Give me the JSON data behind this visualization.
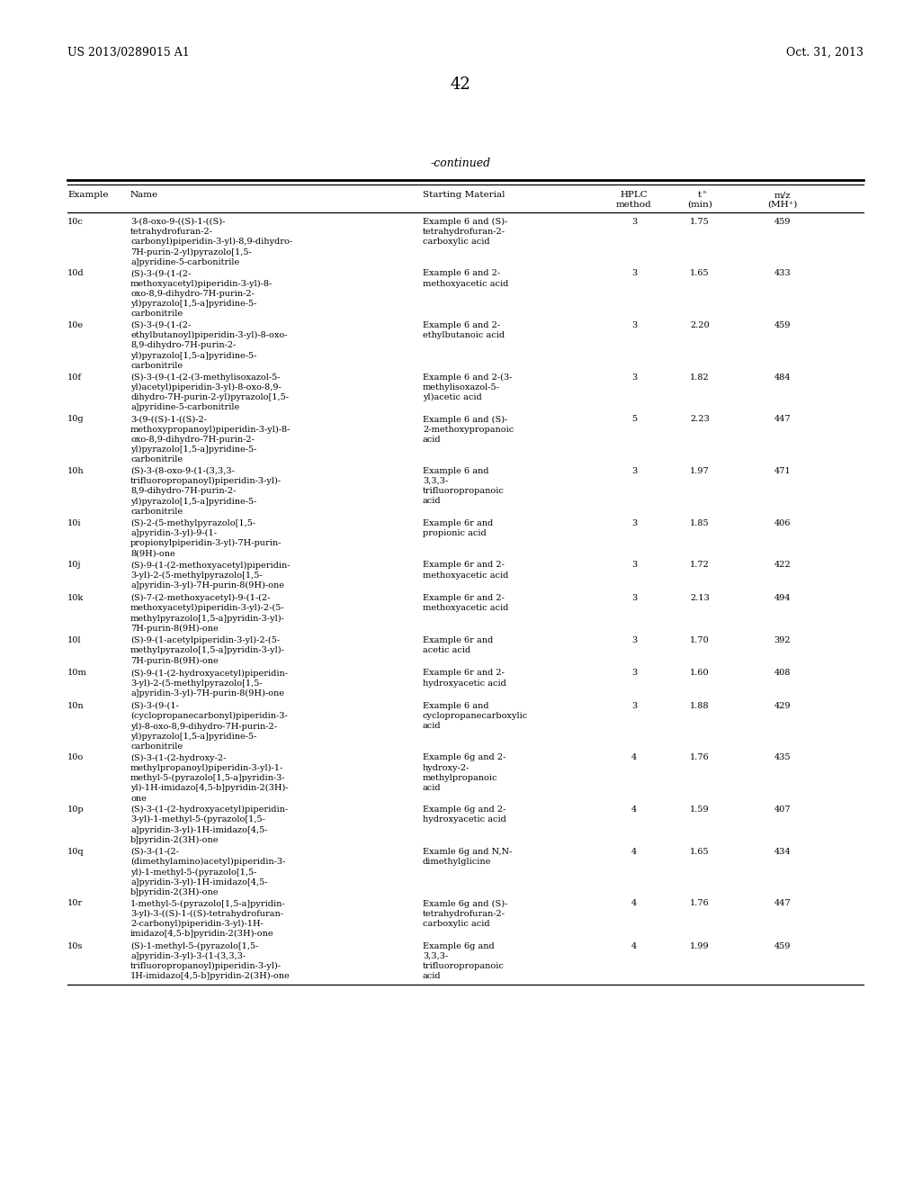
{
  "page_header_left": "US 2013/0289015 A1",
  "page_header_right": "Oct. 31, 2013",
  "page_number": "42",
  "table_title": "-continued",
  "bg_color": "#ffffff",
  "text_color": "#000000",
  "font_size": 7.0,
  "header_font_size": 7.5,
  "rows": [
    {
      "example": "10c",
      "name": "3-(8-oxo-9-((S)-1-((S)-\ntetrahydrofuran-2-\ncarbonyl)piperidin-3-yl)-8,9-dihydro-\n7H-purin-2-yl)pyrazolo[1,5-\na]pyridine-5-carbonitrile",
      "starting_material": "Example 6 and (S)-\ntetrahydrofuran-2-\ncarboxylic acid",
      "hplc": "3",
      "tr": "1.75",
      "mz": "459",
      "nlines_name": 5,
      "nlines_sm": 3
    },
    {
      "example": "10d",
      "name": "(S)-3-(9-(1-(2-\nmethoxyacetyl)piperidin-3-yl)-8-\noxo-8,9-dihydro-7H-purin-2-\nyl)pyrazolo[1,5-a]pyridine-5-\ncarbonitrile",
      "starting_material": "Example 6 and 2-\nmethoxyacetic acid",
      "hplc": "3",
      "tr": "1.65",
      "mz": "433",
      "nlines_name": 5,
      "nlines_sm": 2
    },
    {
      "example": "10e",
      "name": "(S)-3-(9-(1-(2-\nethylbutanoyl)piperidin-3-yl)-8-oxo-\n8,9-dihydro-7H-purin-2-\nyl)pyrazolo[1,5-a]pyridine-5-\ncarbonitrile",
      "starting_material": "Example 6 and 2-\nethylbutanoic acid",
      "hplc": "3",
      "tr": "2.20",
      "mz": "459",
      "nlines_name": 5,
      "nlines_sm": 2
    },
    {
      "example": "10f",
      "name": "(S)-3-(9-(1-(2-(3-methylisoxazol-5-\nyl)acetyl)piperidin-3-yl)-8-oxo-8,9-\ndihydro-7H-purin-2-yl)pyrazolo[1,5-\na]pyridine-5-carbonitrile",
      "starting_material": "Example 6 and 2-(3-\nmethylisoxazol-5-\nyl)acetic acid",
      "hplc": "3",
      "tr": "1.82",
      "mz": "484",
      "nlines_name": 4,
      "nlines_sm": 3
    },
    {
      "example": "10g",
      "name": "3-(9-((S)-1-((S)-2-\nmethoxypropanoyl)piperidin-3-yl)-8-\noxo-8,9-dihydro-7H-purin-2-\nyl)pyrazolo[1,5-a]pyridine-5-\ncarbonitrile",
      "starting_material": "Example 6 and (S)-\n2-methoxypropanoic\nacid",
      "hplc": "5",
      "tr": "2.23",
      "mz": "447",
      "nlines_name": 5,
      "nlines_sm": 3
    },
    {
      "example": "10h",
      "name": "(S)-3-(8-oxo-9-(1-(3,3,3-\ntrifluoropropanoyl)piperidin-3-yl)-\n8,9-dihydro-7H-purin-2-\nyl)pyrazolo[1,5-a]pyridine-5-\ncarbonitrile",
      "starting_material": "Example 6 and\n3,3,3-\ntrifluoropropanoic\nacid",
      "hplc": "3",
      "tr": "1.97",
      "mz": "471",
      "nlines_name": 5,
      "nlines_sm": 4
    },
    {
      "example": "10i",
      "name": "(S)-2-(5-methylpyrazolo[1,5-\na]pyridin-3-yl)-9-(1-\npropionylpiperidin-3-yl)-7H-purin-\n8(9H)-one",
      "starting_material": "Example 6r and\npropionic acid",
      "hplc": "3",
      "tr": "1.85",
      "mz": "406",
      "nlines_name": 4,
      "nlines_sm": 2
    },
    {
      "example": "10j",
      "name": "(S)-9-(1-(2-methoxyacetyl)piperidin-\n3-yl)-2-(5-methylpyrazolo[1,5-\na]pyridin-3-yl)-7H-purin-8(9H)-one",
      "starting_material": "Example 6r and 2-\nmethoxyacetic acid",
      "hplc": "3",
      "tr": "1.72",
      "mz": "422",
      "nlines_name": 3,
      "nlines_sm": 2
    },
    {
      "example": "10k",
      "name": "(S)-7-(2-methoxyacetyl)-9-(1-(2-\nmethoxyacetyl)piperidin-3-yl)-2-(5-\nmethylpyrazolo[1,5-a]pyridin-3-yl)-\n7H-purin-8(9H)-one",
      "starting_material": "Example 6r and 2-\nmethoxyacetic acid",
      "hplc": "3",
      "tr": "2.13",
      "mz": "494",
      "nlines_name": 4,
      "nlines_sm": 2
    },
    {
      "example": "10l",
      "name": "(S)-9-(1-acetylpiperidin-3-yl)-2-(5-\nmethylpyrazolo[1,5-a]pyridin-3-yl)-\n7H-purin-8(9H)-one",
      "starting_material": "Example 6r and\nacetic acid",
      "hplc": "3",
      "tr": "1.70",
      "mz": "392",
      "nlines_name": 3,
      "nlines_sm": 2
    },
    {
      "example": "10m",
      "name": "(S)-9-(1-(2-hydroxyacetyl)piperidin-\n3-yl)-2-(5-methylpyrazolo[1,5-\na]pyridin-3-yl)-7H-purin-8(9H)-one",
      "starting_material": "Example 6r and 2-\nhydroxyacetic acid",
      "hplc": "3",
      "tr": "1.60",
      "mz": "408",
      "nlines_name": 3,
      "nlines_sm": 2
    },
    {
      "example": "10n",
      "name": "(S)-3-(9-(1-\n(cyclopropanecarbonyl)piperidin-3-\nyl)-8-oxo-8,9-dihydro-7H-purin-2-\nyl)pyrazolo[1,5-a]pyridine-5-\ncarbonitrile",
      "starting_material": "Example 6 and\ncyclopropanecarboxylic\nacid",
      "hplc": "3",
      "tr": "1.88",
      "mz": "429",
      "nlines_name": 5,
      "nlines_sm": 3
    },
    {
      "example": "10o",
      "name": "(S)-3-(1-(2-hydroxy-2-\nmethylpropanoyl)piperidin-3-yl)-1-\nmethyl-5-(pyrazolo[1,5-a]pyridin-3-\nyl)-1H-imidazo[4,5-b]pyridin-2(3H)-\none",
      "starting_material": "Example 6g and 2-\nhydroxy-2-\nmethylpropanoic\nacid",
      "hplc": "4",
      "tr": "1.76",
      "mz": "435",
      "nlines_name": 5,
      "nlines_sm": 4
    },
    {
      "example": "10p",
      "name": "(S)-3-(1-(2-hydroxyacetyl)piperidin-\n3-yl)-1-methyl-5-(pyrazolo[1,5-\na]pyridin-3-yl)-1H-imidazo[4,5-\nb]pyridin-2(3H)-one",
      "starting_material": "Example 6g and 2-\nhydroxyacetic acid",
      "hplc": "4",
      "tr": "1.59",
      "mz": "407",
      "nlines_name": 4,
      "nlines_sm": 2
    },
    {
      "example": "10q",
      "name": "(S)-3-(1-(2-\n(dimethylamino)acetyl)piperidin-3-\nyl)-1-methyl-5-(pyrazolo[1,5-\na]pyridin-3-yl)-1H-imidazo[4,5-\nb]pyridin-2(3H)-one",
      "starting_material": "Examle 6g and N,N-\ndimethylglicine",
      "hplc": "4",
      "tr": "1.65",
      "mz": "434",
      "nlines_name": 5,
      "nlines_sm": 2
    },
    {
      "example": "10r",
      "name": "1-methyl-5-(pyrazolo[1,5-a]pyridin-\n3-yl)-3-((S)-1-((S)-tetrahydrofuran-\n2-carbonyl)piperidin-3-yl)-1H-\nimidazo[4,5-b]pyridin-2(3H)-one",
      "starting_material": "Examle 6g and (S)-\ntetrahydrofuran-2-\ncarboxylic acid",
      "hplc": "4",
      "tr": "1.76",
      "mz": "447",
      "nlines_name": 4,
      "nlines_sm": 3
    },
    {
      "example": "10s",
      "name": "(S)-1-methyl-5-(pyrazolo[1,5-\na]pyridin-3-yl)-3-(1-(3,3,3-\ntrifluoropropanoyl)piperidin-3-yl)-\n1H-imidazo[4,5-b]pyridin-2(3H)-one",
      "starting_material": "Example 6g and\n3,3,3-\ntrifluoropropanoic\nacid",
      "hplc": "4",
      "tr": "1.99",
      "mz": "459",
      "nlines_name": 4,
      "nlines_sm": 4
    }
  ]
}
